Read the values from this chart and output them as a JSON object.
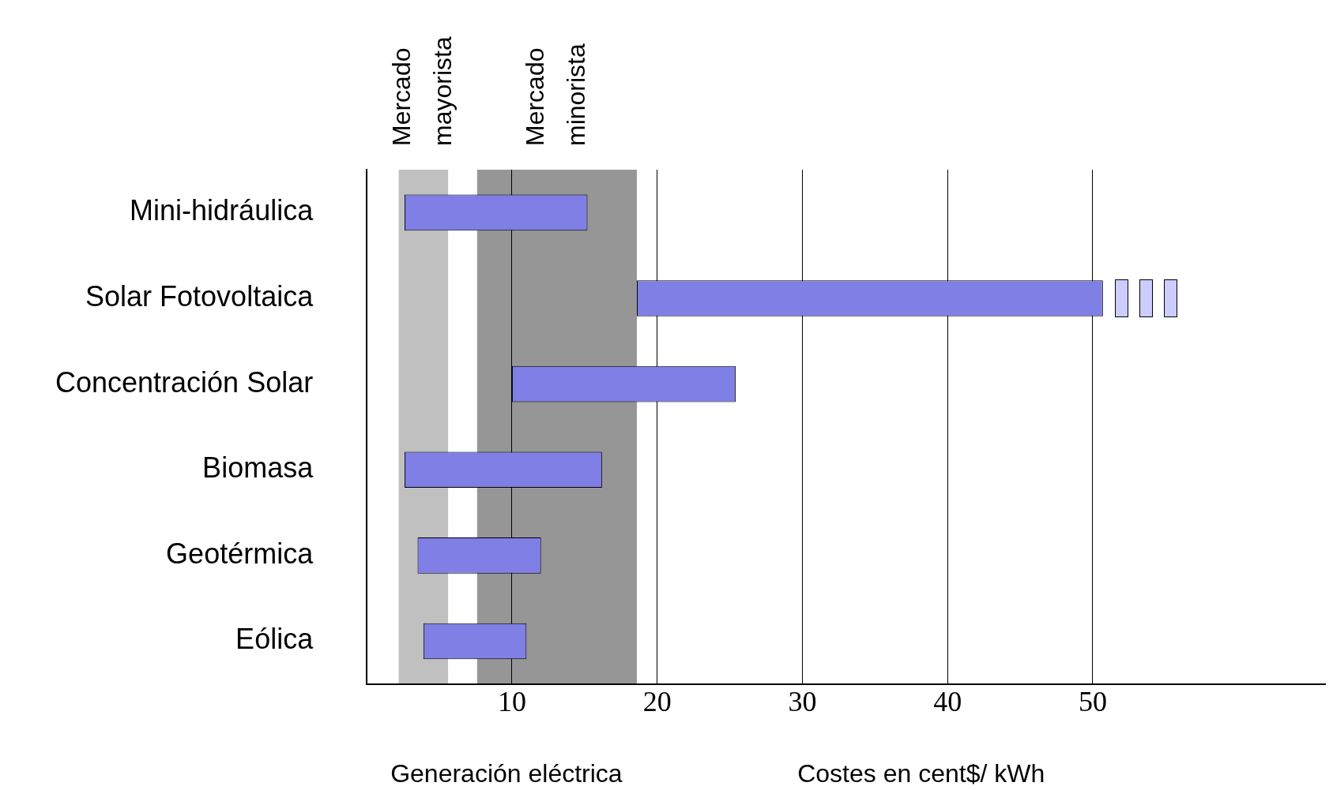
{
  "chart_data": {
    "type": "bar",
    "orientation": "horizontal",
    "categories": [
      "Mini-hidráulica",
      "Solar Fotovoltaica",
      "Concentración Solar",
      "Biomasa",
      "Geotérmica",
      "Eólica"
    ],
    "base": [
      2.6,
      18.6,
      10.0,
      2.6,
      3.5,
      3.9
    ],
    "values": [
      12.6,
      32.1,
      15.4,
      13.6,
      8.5,
      7.1
    ],
    "color": "#7f7fe6",
    "xlim": [
      0,
      66
    ],
    "xticks": [
      10,
      20,
      30,
      40,
      50
    ],
    "grid": "x",
    "xlabel": "Costes en cent$/ kWh",
    "annotations": [
      "Generación eléctrica"
    ],
    "bands": [
      {
        "axis": "x",
        "from": 2.2,
        "to": 5.6,
        "label": "Mercado mayorista",
        "color": "#c0c0c0"
      },
      {
        "axis": "x",
        "from": 7.6,
        "to": 18.6,
        "label": "Mercado minorista",
        "color": "#969696"
      }
    ]
  }
}
